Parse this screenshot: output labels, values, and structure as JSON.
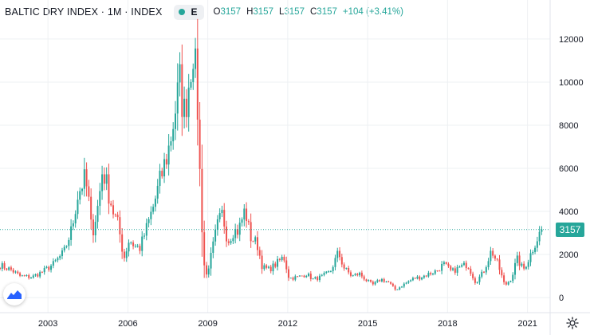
{
  "header": {
    "title": "BALTIC DRY INDEX · 1M · INDEX",
    "badge_letter": "E",
    "ohlc": {
      "o_label": "O",
      "o_value": "3157",
      "h_label": "H",
      "h_value": "3157",
      "l_label": "L",
      "l_value": "3157",
      "c_label": "C",
      "c_value": "3157",
      "change": "+104 (+3.41%)"
    }
  },
  "last_price_label": "3157",
  "icons": {
    "logo": "tradingview-logo-icon",
    "settings": "gear-icon"
  },
  "colors": {
    "up": "#26a69a",
    "down": "#ef5350",
    "badge_dot": "#26a69a",
    "ohlc_text": "#26a69a",
    "last_line": "#26a69a",
    "grid": "#eef0f3",
    "axis_text": "#131722"
  },
  "chart_data": {
    "type": "candlestick",
    "interval": "monthly",
    "x_tick_labels": [
      "2003",
      "2006",
      "2009",
      "2012",
      "2015",
      "2018",
      "2021"
    ],
    "y_tick_labels": [
      "0",
      "2000",
      "4000",
      "6000",
      "8000",
      "10000",
      "12000"
    ],
    "xlim": [
      2001.2,
      2021.85
    ],
    "ylim": [
      -700,
      12700
    ],
    "last_value": 3157,
    "grid": true,
    "anchors": [
      [
        2001.2,
        1500
      ],
      [
        2001.6,
        1300
      ],
      [
        2001.95,
        1000
      ],
      [
        2002.4,
        950
      ],
      [
        2002.8,
        1200
      ],
      [
        2003.2,
        1550
      ],
      [
        2003.6,
        2100
      ],
      [
        2003.9,
        3200
      ],
      [
        2004.1,
        4700
      ],
      [
        2004.35,
        5500
      ],
      [
        2004.5,
        4900
      ],
      [
        2004.65,
        2900
      ],
      [
        2004.9,
        4400
      ],
      [
        2005.05,
        6000
      ],
      [
        2005.25,
        5000
      ],
      [
        2005.45,
        4000
      ],
      [
        2005.65,
        3300
      ],
      [
        2005.85,
        1800
      ],
      [
        2006.05,
        2700
      ],
      [
        2006.25,
        2400
      ],
      [
        2006.45,
        2300
      ],
      [
        2006.7,
        3200
      ],
      [
        2006.95,
        4200
      ],
      [
        2007.25,
        5600
      ],
      [
        2007.55,
        7000
      ],
      [
        2007.75,
        8500
      ],
      [
        2007.95,
        10000
      ],
      [
        2008.1,
        8500
      ],
      [
        2008.25,
        9600
      ],
      [
        2008.45,
        11700
      ],
      [
        2008.6,
        9400
      ],
      [
        2008.75,
        4000
      ],
      [
        2008.9,
        800
      ],
      [
        2009.1,
        1800
      ],
      [
        2009.35,
        3300
      ],
      [
        2009.55,
        3900
      ],
      [
        2009.75,
        2600
      ],
      [
        2009.95,
        3100
      ],
      [
        2010.15,
        3100
      ],
      [
        2010.4,
        4100
      ],
      [
        2010.6,
        2800
      ],
      [
        2010.85,
        2500
      ],
      [
        2011.05,
        1400
      ],
      [
        2011.3,
        1300
      ],
      [
        2011.6,
        1600
      ],
      [
        2011.85,
        1900
      ],
      [
        2012.05,
        900
      ],
      [
        2012.4,
        950
      ],
      [
        2012.7,
        1100
      ],
      [
        2012.95,
        850
      ],
      [
        2013.25,
        950
      ],
      [
        2013.6,
        1200
      ],
      [
        2013.9,
        2100
      ],
      [
        2014.1,
        1400
      ],
      [
        2014.4,
        1000
      ],
      [
        2014.7,
        1100
      ],
      [
        2014.95,
        800
      ],
      [
        2015.2,
        600
      ],
      [
        2015.5,
        850
      ],
      [
        2015.8,
        700
      ],
      [
        2016.05,
        350
      ],
      [
        2016.4,
        650
      ],
      [
        2016.75,
        900
      ],
      [
        2017.0,
        950
      ],
      [
        2017.3,
        1100
      ],
      [
        2017.6,
        1250
      ],
      [
        2017.85,
        1550
      ],
      [
        2018.15,
        1200
      ],
      [
        2018.45,
        1400
      ],
      [
        2018.75,
        1550
      ],
      [
        2019.05,
        700
      ],
      [
        2019.35,
        1200
      ],
      [
        2019.65,
        2200
      ],
      [
        2019.9,
        1500
      ],
      [
        2020.15,
        550
      ],
      [
        2020.4,
        900
      ],
      [
        2020.6,
        1800
      ],
      [
        2020.85,
        1300
      ],
      [
        2021.05,
        1800
      ],
      [
        2021.3,
        2600
      ],
      [
        2021.5,
        3053
      ],
      [
        2021.6,
        3157
      ]
    ]
  }
}
